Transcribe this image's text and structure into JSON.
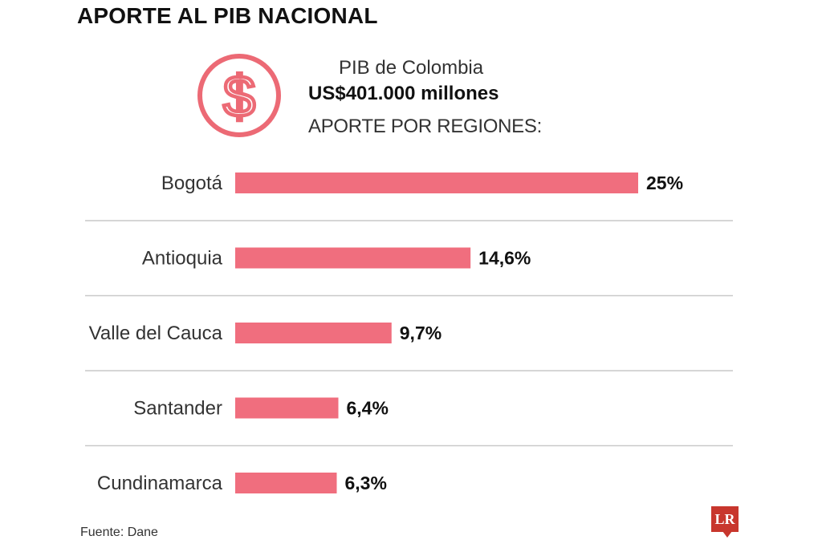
{
  "title": "APORTE AL PIB NACIONAL",
  "header": {
    "gdp_label": "PIB de Colombia",
    "gdp_value": "US$401.000 millones",
    "regions_label": "APORTE POR REGIONES:",
    "icon": "dollar-circle-icon"
  },
  "colors": {
    "bar": "#f06e7e",
    "icon": "#ec6a75",
    "divider": "#c9c9c9",
    "logo": "#c8362d"
  },
  "chart_data": {
    "type": "bar",
    "orientation": "horizontal",
    "categories": [
      "Bogotá",
      "Antioquia",
      "Valle del Cauca",
      "Santander",
      "Cundinamarca"
    ],
    "values": [
      25,
      14.6,
      9.7,
      6.4,
      6.3
    ],
    "value_labels": [
      "25%",
      "14,6%",
      "9,7%",
      "6,4%",
      "6,3%"
    ],
    "unit": "%",
    "xlim": [
      0,
      25
    ]
  },
  "source": "Fuente: Dane",
  "logo": "LR"
}
